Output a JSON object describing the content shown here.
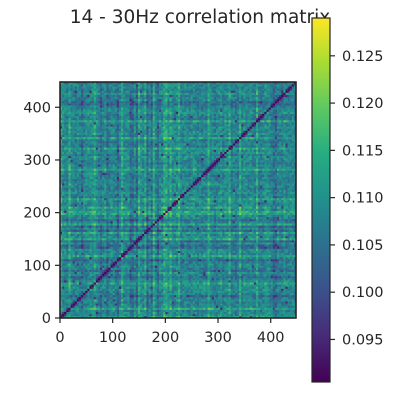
{
  "chart_data": {
    "type": "heatmap",
    "title": "14 - 30Hz correlation matrix",
    "xlabel": "",
    "ylabel": "",
    "matrix_size": 448,
    "xlim": [
      0,
      448
    ],
    "ylim": [
      0,
      448
    ],
    "x_ticks": [
      0,
      100,
      200,
      300,
      400
    ],
    "y_ticks": [
      0,
      100,
      200,
      300,
      400
    ],
    "x_tick_labels": [
      "0",
      "100",
      "200",
      "300",
      "400"
    ],
    "y_tick_labels": [
      "0",
      "100",
      "200",
      "300",
      "400"
    ],
    "colorbar": {
      "colormap": "viridis",
      "vmin": 0.0905,
      "vmax": 0.129,
      "ticks": [
        0.095,
        0.1,
        0.105,
        0.11,
        0.115,
        0.12,
        0.125
      ],
      "tick_labels": [
        "0.095",
        "0.100",
        "0.105",
        "0.110",
        "0.115",
        "0.120",
        "0.125"
      ]
    },
    "typical_value": 0.108,
    "diagonal_value": 0.091,
    "grid": false,
    "legend": "none"
  }
}
